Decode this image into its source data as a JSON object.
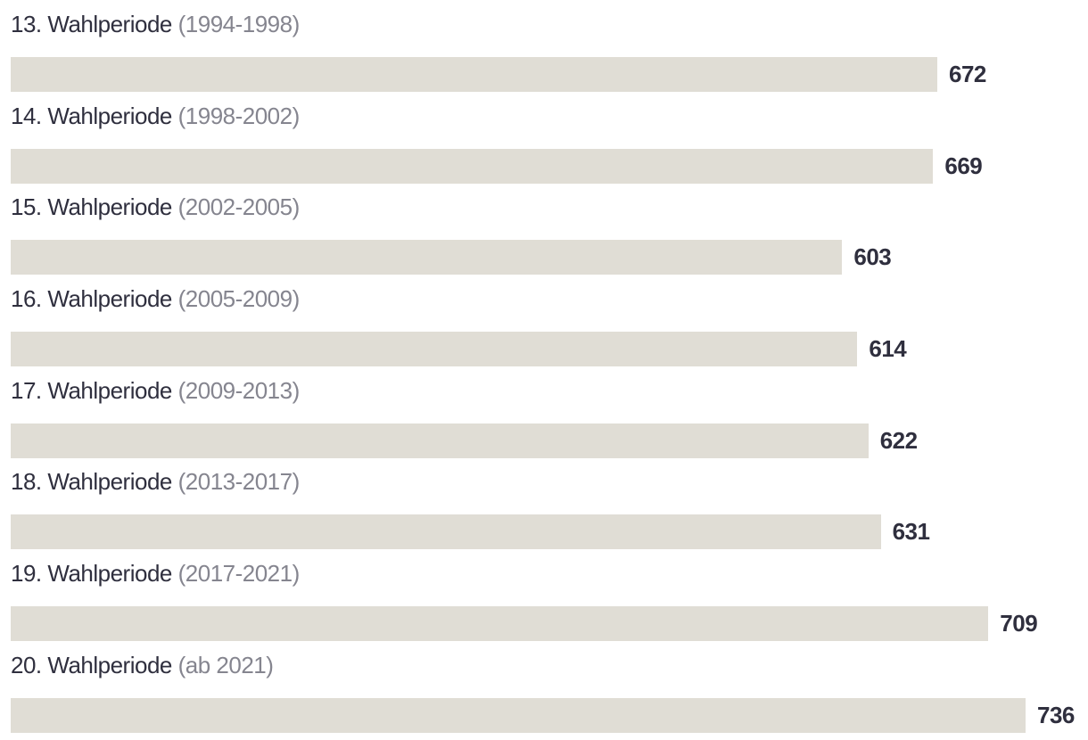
{
  "chart_data": {
    "type": "bar",
    "orientation": "horizontal",
    "title": "",
    "xlabel": "",
    "ylabel": "",
    "xlim": [
      0,
      736
    ],
    "grid": false,
    "legend": false,
    "value_labels": "end-of-bar",
    "categories": [
      "13. Wahlperiode",
      "14. Wahlperiode",
      "15. Wahlperiode",
      "16. Wahlperiode",
      "17. Wahlperiode",
      "18. Wahlperiode",
      "19. Wahlperiode",
      "20. Wahlperiode"
    ],
    "period_ranges": [
      "(1994-1998)",
      "(1998-2002)",
      "(2002-2005)",
      "(2005-2009)",
      "(2009-2013)",
      "(2013-2017)",
      "(2017-2021)",
      "(ab 2021)"
    ],
    "values": [
      672,
      669,
      603,
      614,
      622,
      631,
      709,
      736
    ],
    "colors": {
      "bar": "#e0ddd5",
      "category_text": "#2f2f3e",
      "period_text": "#85858f",
      "value_text": "#2f2f3e",
      "background": "#ffffff"
    }
  }
}
